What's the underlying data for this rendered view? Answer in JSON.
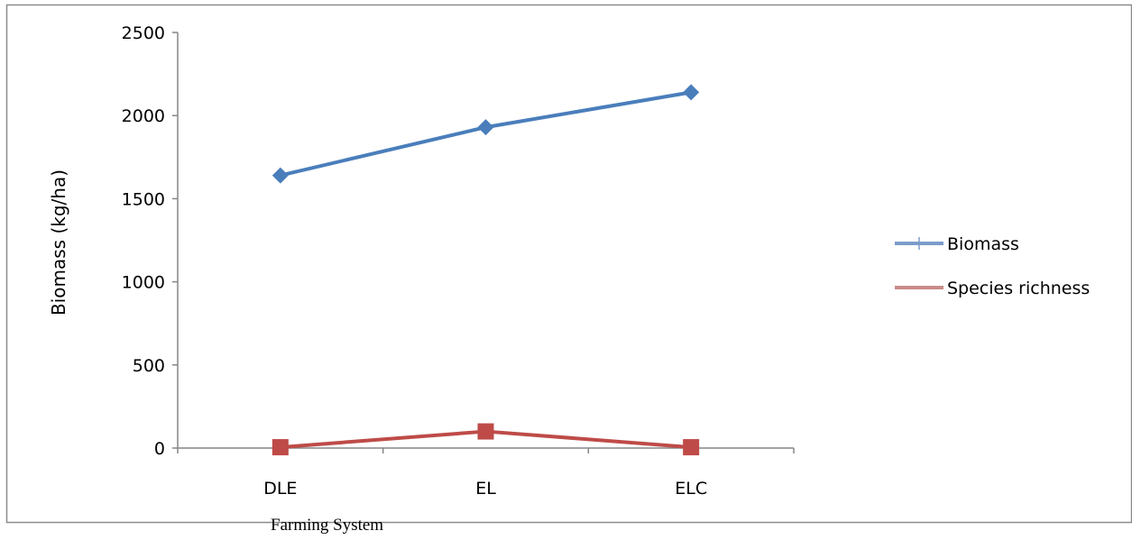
{
  "chart_data": {
    "type": "line",
    "categories": [
      "DLE",
      "EL",
      "ELC"
    ],
    "series": [
      {
        "name": "Biomass",
        "values": [
          1640,
          1930,
          2140
        ],
        "color": "#4a7ebb",
        "marker": "diamond"
      },
      {
        "name": "Species richness",
        "values": [
          5,
          100,
          5
        ],
        "color": "#be4b48",
        "marker": "square"
      }
    ],
    "xlabel": "Farming System",
    "ylabel": "Biomass (kg/ha)",
    "ylim": [
      0,
      2500
    ],
    "yticks": [
      0,
      500,
      1000,
      1500,
      2000,
      2500
    ],
    "grid": false,
    "legend_position": "right"
  }
}
